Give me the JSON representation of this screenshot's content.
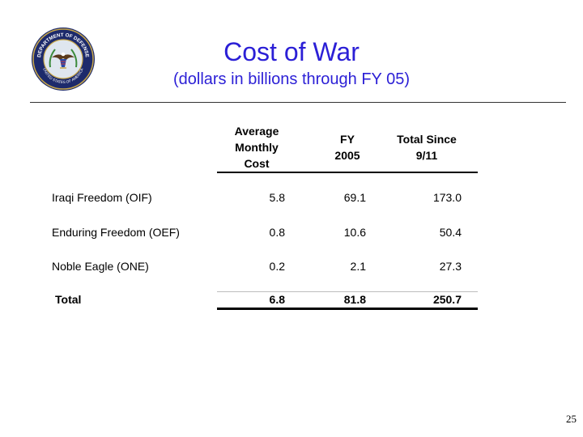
{
  "seal": {
    "top_text": "DEPARTMENT OF DEFENSE",
    "bottom_text": "UNITED STATES OF AMERICA"
  },
  "title": "Cost of War",
  "subtitle": "(dollars in billions through FY 05)",
  "table": {
    "headers": [
      [
        "Average",
        "Monthly",
        "Cost"
      ],
      [
        "FY",
        "2005"
      ],
      [
        "Total Since",
        "9/11"
      ]
    ],
    "rows": [
      {
        "label": "Iraqi Freedom (OIF)",
        "avg": "5.8",
        "fy": "69.1",
        "total": "173.0"
      },
      {
        "label": "Enduring Freedom (OEF)",
        "avg": "0.8",
        "fy": "10.6",
        "total": "50.4"
      },
      {
        "label": "Noble Eagle (ONE)",
        "avg": "0.2",
        "fy": "2.1",
        "total": "27.3"
      }
    ],
    "total": {
      "label": "Total",
      "avg": "6.8",
      "fy": "81.8",
      "total": "250.7"
    }
  },
  "page_number": "25"
}
